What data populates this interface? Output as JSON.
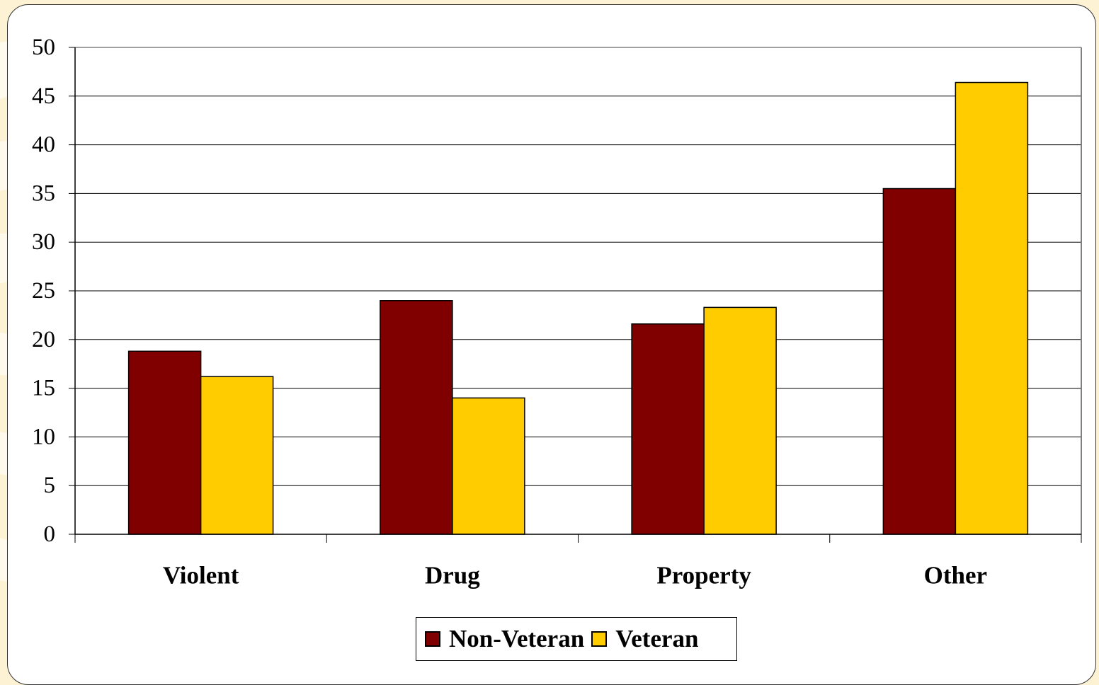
{
  "chart_data": {
    "type": "bar",
    "categories": [
      "Violent",
      "Drug",
      "Property",
      "Other"
    ],
    "series": [
      {
        "name": "Non-Veteran",
        "values": [
          18.8,
          24.0,
          21.6,
          35.5
        ],
        "color": "#800000"
      },
      {
        "name": "Veteran",
        "values": [
          16.2,
          14.0,
          23.3,
          46.4
        ],
        "color": "#ffcc00"
      }
    ],
    "title": "",
    "xlabel": "",
    "ylabel": "",
    "ylim": [
      0,
      50
    ],
    "yticks": [
      "0",
      "5",
      "10",
      "15",
      "20",
      "25",
      "30",
      "35",
      "40",
      "45",
      "50"
    ],
    "grid": true,
    "legend_position": "bottom"
  },
  "colors": {
    "background": "#fdf3d4",
    "panel": "#ffffff",
    "gridline": "#000000"
  }
}
